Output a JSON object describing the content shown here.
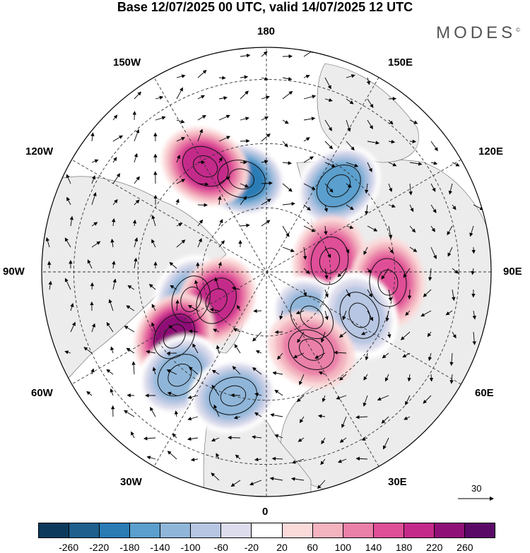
{
  "title": "Base 12/07/2025 00 UTC, valid 14/07/2025 12 UTC",
  "brand": "MODES",
  "brand_mark": "©",
  "map": {
    "projection": "north-polar-stereographic",
    "longitude_labels": {
      "top": "180",
      "bottom": "0",
      "left": "90W",
      "right": "90E",
      "upper_left_1": "150W",
      "upper_left_2": "120W",
      "upper_right_1": "150E",
      "upper_right_2": "120E",
      "lower_left_1": "60W",
      "lower_left_2": "30W",
      "lower_right_1": "60E",
      "lower_right_2": "30E"
    },
    "reference_vector_label": "30"
  },
  "colorbar": {
    "labels": [
      "-260",
      "-220",
      "-180",
      "-140",
      "-100",
      "-60",
      "-20",
      "20",
      "60",
      "100",
      "140",
      "180",
      "220",
      "260"
    ],
    "colors": [
      "#0d3a5c",
      "#1e5f8e",
      "#2b7bb5",
      "#5a9fcd",
      "#8fb6d9",
      "#b7c6e2",
      "#dcdcec",
      "#ffffff",
      "#fbdada",
      "#f3b3bf",
      "#ea80a8",
      "#df4f98",
      "#c42a8a",
      "#8f1177",
      "#5a0a66"
    ]
  },
  "anomaly_centers": [
    {
      "lon": -165,
      "lat": 60,
      "value": -200
    },
    {
      "lon": -150,
      "lat": 52,
      "value": 160
    },
    {
      "lon": 140,
      "lat": 55,
      "value": -180
    },
    {
      "lon": 100,
      "lat": 70,
      "value": 140
    },
    {
      "lon": 85,
      "lat": 52,
      "value": 120
    },
    {
      "lon": -70,
      "lat": 65,
      "value": -140
    },
    {
      "lon": -60,
      "lat": 72,
      "value": 180
    },
    {
      "lon": -55,
      "lat": 55,
      "value": 200
    },
    {
      "lon": -40,
      "lat": 48,
      "value": -140
    },
    {
      "lon": -15,
      "lat": 50,
      "value": -140
    },
    {
      "lon": 45,
      "lat": 70,
      "value": -120
    },
    {
      "lon": 65,
      "lat": 58,
      "value": -100
    },
    {
      "lon": 30,
      "lat": 62,
      "value": 80
    }
  ]
}
